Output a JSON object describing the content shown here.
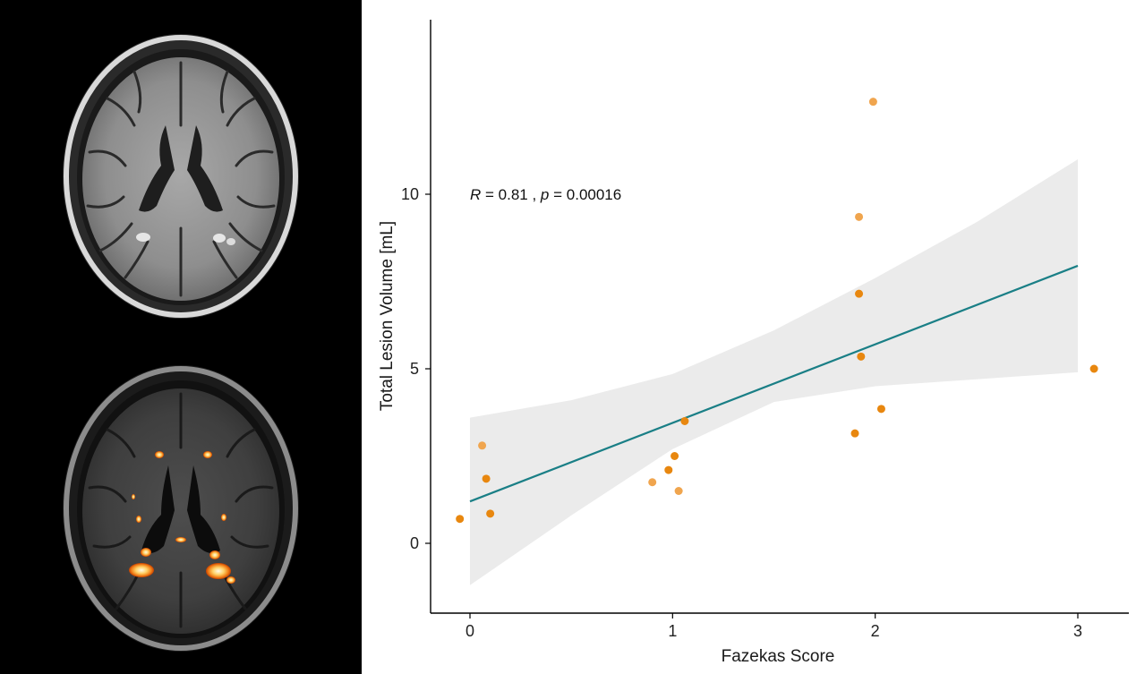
{
  "images": {
    "top": "Axial FLAIR MRI brain slice",
    "bottom": "Axial MRI brain slice with lesion segmentation overlay"
  },
  "colors": {
    "point": "#e8870f",
    "point_light": "#f0a54e",
    "fit_line": "#1a7f86",
    "confidence_band": "#ebebeb",
    "axis": "#000000"
  },
  "chart_data": {
    "type": "scatter",
    "title": "",
    "xlabel": "Fazekas Score",
    "ylabel": "Total Lesion Volume [mL]",
    "xlim": [
      -0.2,
      3.25
    ],
    "ylim": [
      -2.0,
      15.0
    ],
    "xticks": [
      0,
      1,
      2,
      3
    ],
    "yticks": [
      0,
      5,
      10
    ],
    "points": [
      {
        "x": -0.05,
        "y": 0.7
      },
      {
        "x": 0.06,
        "y": 2.8
      },
      {
        "x": 0.08,
        "y": 1.85
      },
      {
        "x": 0.1,
        "y": 0.85
      },
      {
        "x": 0.9,
        "y": 1.75
      },
      {
        "x": 0.98,
        "y": 2.1
      },
      {
        "x": 1.01,
        "y": 2.5
      },
      {
        "x": 1.03,
        "y": 1.5
      },
      {
        "x": 1.06,
        "y": 3.5
      },
      {
        "x": 1.9,
        "y": 3.15
      },
      {
        "x": 1.92,
        "y": 9.35
      },
      {
        "x": 1.92,
        "y": 7.15
      },
      {
        "x": 1.93,
        "y": 5.35
      },
      {
        "x": 1.99,
        "y": 12.65
      },
      {
        "x": 2.03,
        "y": 3.85
      },
      {
        "x": 3.08,
        "y": 5.0
      }
    ],
    "fit": {
      "x": [
        0,
        3
      ],
      "y": [
        1.2,
        7.95
      ]
    },
    "band": {
      "x": [
        0,
        0.5,
        1,
        1.5,
        2,
        2.5,
        3
      ],
      "lower": [
        -1.2,
        0.8,
        2.7,
        4.05,
        4.5,
        4.7,
        4.9
      ],
      "upper": [
        3.6,
        4.1,
        4.85,
        6.1,
        7.6,
        9.2,
        11.0
      ]
    },
    "annotation": {
      "r_label": "R",
      "r_text": " = 0.81 , ",
      "p_label": "p",
      "p_text": " = 0.00016"
    }
  }
}
